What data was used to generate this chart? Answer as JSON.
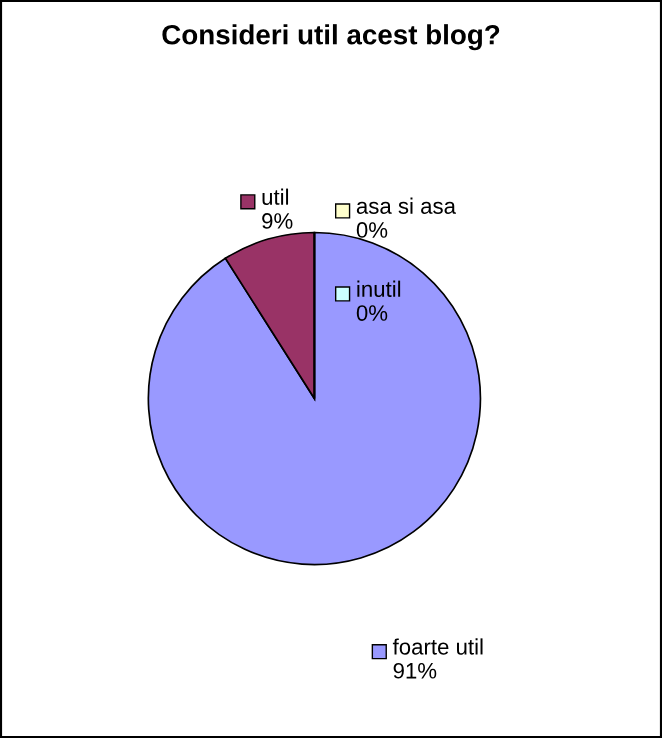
{
  "chart_data": {
    "type": "pie",
    "title": "Consideri util acest blog?",
    "categories": [
      "foarte util",
      "util",
      "inutil",
      "asa si asa"
    ],
    "values": [
      91,
      9,
      0,
      0
    ],
    "colors": [
      "#9999ff",
      "#993366",
      "#ccffff",
      "#ffffcc"
    ],
    "value_labels": [
      "91%",
      "9%",
      "0%",
      "0%"
    ],
    "legend": "right"
  }
}
